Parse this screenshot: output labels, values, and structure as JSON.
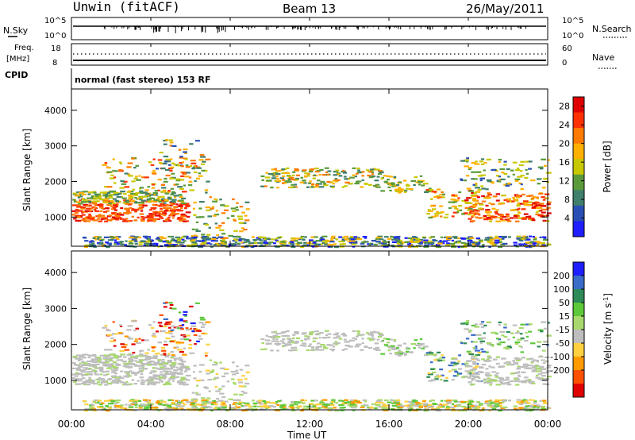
{
  "header": {
    "station": "Unwin (fitACF)",
    "beam": "Beam 13",
    "date": "26/May/2011"
  },
  "top_panels": {
    "nsky_label": "N.Sky",
    "nsky_ticks": [
      "10^5",
      "10^0"
    ],
    "nsearch_label": "N.Search",
    "nsearch_ticks": [
      "10^5",
      "10^0"
    ],
    "freq_label": "Freq.",
    "freq_unit": "[MHz]",
    "freq_ticks": [
      "18",
      "8"
    ],
    "nave_label": "Nave",
    "nave_ticks": [
      "60",
      "0"
    ],
    "cpid_label": "CPID",
    "cpid_value": "normal (fast stereo) 153 RF"
  },
  "chart_data": [
    {
      "type": "heatmap",
      "name": "power",
      "ylabel": "Slant Range [km]",
      "yticks": [
        "4000",
        "3000",
        "2000",
        "1000"
      ],
      "ylim": [
        180,
        4600
      ],
      "xticks": [
        "00:00",
        "04:00",
        "08:00",
        "12:00",
        "16:00",
        "20:00",
        "00:00"
      ],
      "xlim_hours": [
        0,
        24
      ],
      "colorbar": {
        "label": "Power [dB]",
        "ticks": [
          "28",
          "24",
          "20",
          "16",
          "12",
          "8",
          "4"
        ],
        "range": [
          0,
          30
        ],
        "colors": [
          "#1e1eff",
          "#2a4fb4",
          "#3f7f6c",
          "#5a9a3a",
          "#c8c800",
          "#ffb000",
          "#ff7a00",
          "#ff3000",
          "#e00000"
        ]
      }
    },
    {
      "type": "heatmap",
      "name": "velocity",
      "ylabel": "Slant Range [km]",
      "yticks": [
        "4000",
        "3000",
        "2000",
        "1000"
      ],
      "ylim": [
        180,
        4600
      ],
      "xticks": [
        "00:00",
        "04:00",
        "08:00",
        "12:00",
        "16:00",
        "20:00",
        "00:00"
      ],
      "xlabel": "Time UT",
      "xlim_hours": [
        0,
        24
      ],
      "colorbar": {
        "label": "Velocity [m s^-1]",
        "ticks": [
          "200",
          "100",
          "50",
          "15",
          "-15",
          "-50",
          "-100",
          "-200"
        ],
        "colors": [
          "#1e1eff",
          "#3a6cc8",
          "#2e8b57",
          "#5cc83a",
          "#a8d86e",
          "#bebebe",
          "#ffd040",
          "#ff9a00",
          "#ff5000",
          "#e00000"
        ]
      }
    }
  ]
}
